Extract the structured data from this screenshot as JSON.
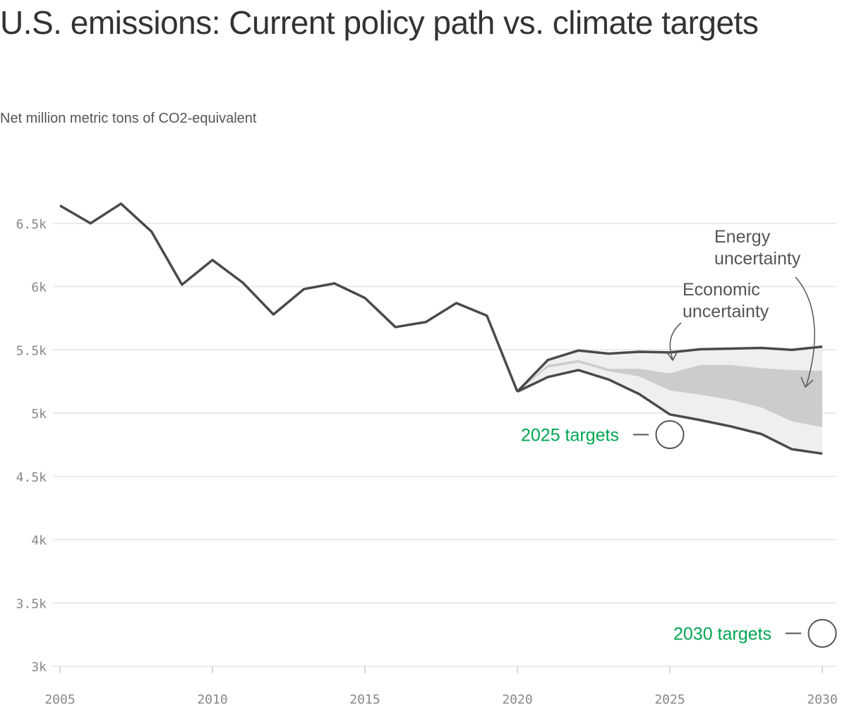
{
  "chart_data": {
    "type": "line",
    "title": "U.S. emissions: Current policy path vs. climate targets",
    "subtitle": "Net million metric tons of CO2-equivalent",
    "xlim": [
      2005,
      2030
    ],
    "ylim": [
      3000,
      6700
    ],
    "x_ticks": [
      2005,
      2010,
      2015,
      2020,
      2025,
      2030
    ],
    "x_tick_labels": [
      "2005",
      "2010",
      "2015",
      "2020",
      "2025",
      "2030"
    ],
    "y_ticks": [
      3000,
      3500,
      4000,
      4500,
      5000,
      5500,
      6000,
      6500
    ],
    "y_tick_labels": [
      "3k",
      "3.5k",
      "4k",
      "4.5k",
      "5k",
      "5.5k",
      "6k",
      "6.5k"
    ],
    "grid": "horizontal",
    "historical": {
      "x": [
        2005,
        2006,
        2007,
        2008,
        2009,
        2010,
        2011,
        2012,
        2013,
        2014,
        2015,
        2016,
        2017,
        2018,
        2019,
        2020
      ],
      "values": [
        6640,
        6500,
        6655,
        6435,
        6015,
        6210,
        6030,
        5780,
        5980,
        6025,
        5910,
        5680,
        5720,
        5870,
        5770,
        5170
      ]
    },
    "projection_x": [
      2020,
      2021,
      2022,
      2023,
      2024,
      2025,
      2026,
      2027,
      2028,
      2029,
      2030
    ],
    "energy_uncertainty": {
      "label": "Energy\nuncertainty",
      "upper": [
        5170,
        5420,
        5495,
        5470,
        5485,
        5480,
        5505,
        5510,
        5515,
        5500,
        5525
      ],
      "lower": [
        5170,
        5285,
        5340,
        5265,
        5150,
        4990,
        4945,
        4895,
        4835,
        4715,
        4680
      ],
      "color": "#efefef"
    },
    "economic_uncertainty": {
      "label": "Economic\nuncertainty",
      "upper": [
        5170,
        5380,
        5420,
        5350,
        5350,
        5315,
        5380,
        5380,
        5355,
        5340,
        5335
      ],
      "lower": [
        5170,
        5360,
        5400,
        5330,
        5290,
        5180,
        5145,
        5105,
        5045,
        4935,
        4890
      ],
      "color": "#cccccc"
    },
    "targets": [
      {
        "label": "2025 targets",
        "x": 2025,
        "value": 4830
      },
      {
        "label": "2030 targets",
        "x": 2030,
        "value": 3260
      }
    ],
    "colors": {
      "line": "#4a4a4a",
      "target_text": "#00a651",
      "grid": "#e3e3e3"
    }
  }
}
